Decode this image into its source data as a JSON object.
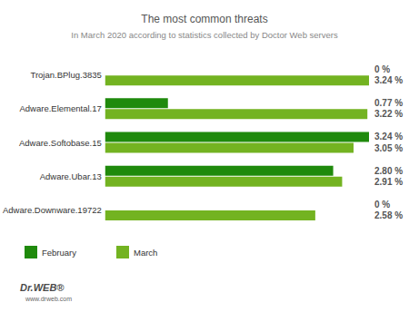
{
  "chart_data": {
    "type": "bar",
    "orientation": "horizontal",
    "title": "The most common threats",
    "subtitle": "In March 2020 according to statistics collected by Doctor Web servers",
    "categories": [
      "Trojan.BPlug.3835",
      "Adware.Elemental.17",
      "Adware.Softobase.15",
      "Adware.Ubar.13",
      "Adware.Downware.19722"
    ],
    "series": [
      {
        "name": "February",
        "color": "#1f8a0c",
        "values": [
          0,
          0.77,
          3.24,
          2.8,
          0
        ],
        "value_labels": [
          "0 %",
          "0.77 %",
          "3.24 %",
          "2.80 %",
          "0 %"
        ]
      },
      {
        "name": "March",
        "color": "#73b321",
        "values": [
          3.24,
          3.22,
          3.05,
          2.91,
          2.58
        ],
        "value_labels": [
          "3.24 %",
          "3.22 %",
          "3.05 %",
          "2.91 %",
          "2.58 %"
        ]
      }
    ],
    "xlim": [
      0,
      3.24
    ],
    "data_labels": true,
    "tick_labels": "y",
    "grid": false,
    "legend": "bottom-left",
    "annotations": [
      "Dr.WEB®",
      "www.drweb.com"
    ]
  }
}
